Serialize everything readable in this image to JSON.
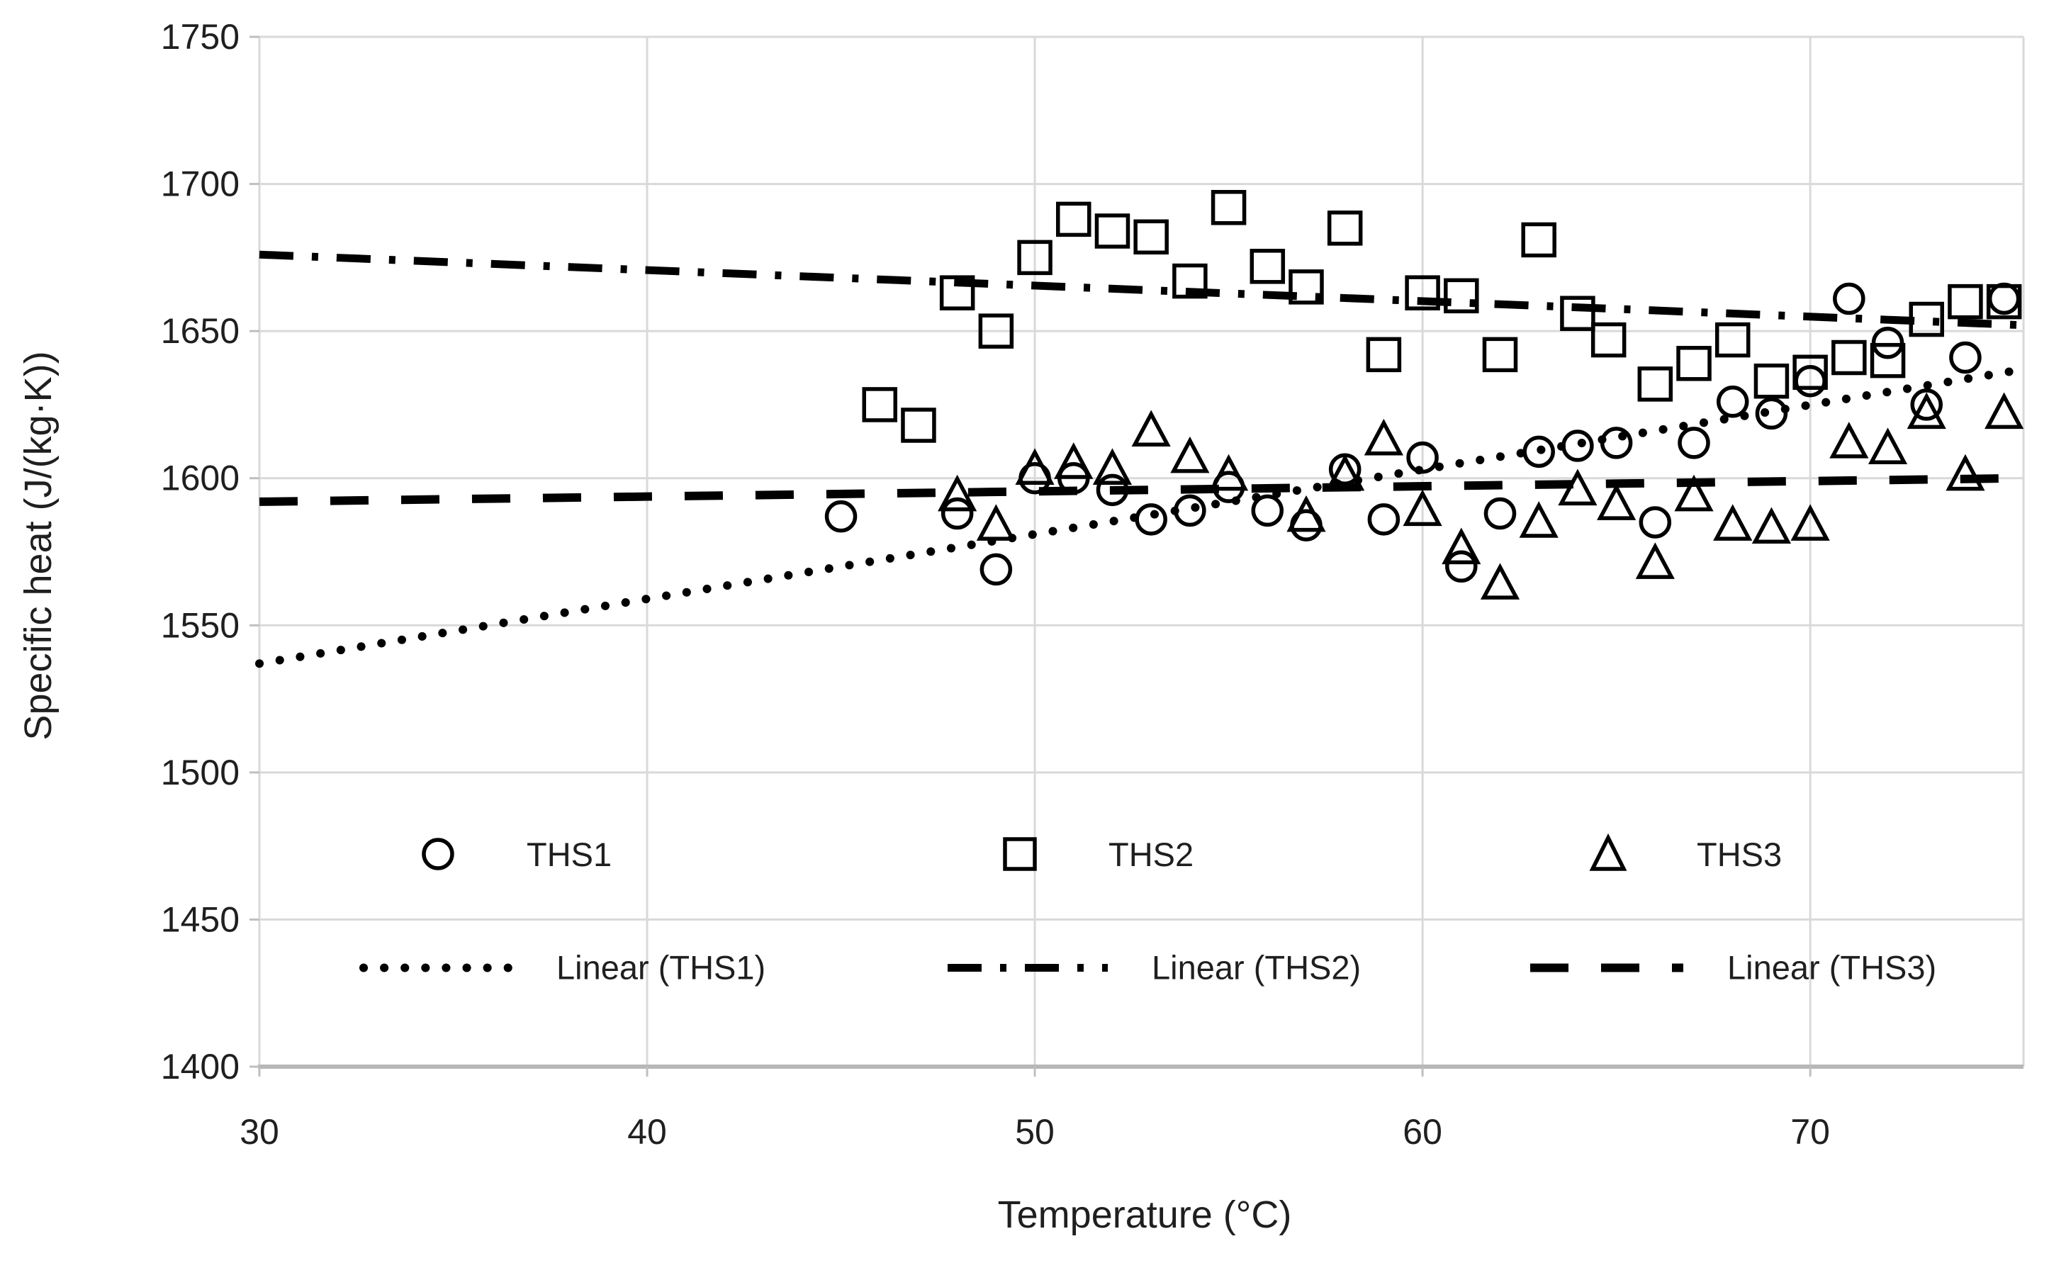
{
  "chart_data": {
    "type": "scatter",
    "title": "",
    "xlabel": "Temperature (°C)",
    "ylabel": "Specific heat (J/(kg·K))",
    "xlim": [
      30,
      75.5
    ],
    "ylim": [
      1400,
      1750
    ],
    "x_ticks": [
      30,
      40,
      50,
      60,
      70
    ],
    "y_ticks": [
      1400,
      1450,
      1500,
      1550,
      1600,
      1650,
      1700,
      1750
    ],
    "grid": true,
    "legend_position": "inside-bottom",
    "series": [
      {
        "name": "THS1",
        "marker": "circle",
        "points": [
          [
            45,
            1587
          ],
          [
            48,
            1588
          ],
          [
            49,
            1569
          ],
          [
            50,
            1600
          ],
          [
            51,
            1600
          ],
          [
            52,
            1596
          ],
          [
            53,
            1586
          ],
          [
            54,
            1589
          ],
          [
            55,
            1597
          ],
          [
            56,
            1589
          ],
          [
            57,
            1584
          ],
          [
            58,
            1603
          ],
          [
            59,
            1586
          ],
          [
            60,
            1607
          ],
          [
            61,
            1570
          ],
          [
            62,
            1588
          ],
          [
            63,
            1609
          ],
          [
            64,
            1611
          ],
          [
            65,
            1612
          ],
          [
            66,
            1585
          ],
          [
            67,
            1612
          ],
          [
            68,
            1626
          ],
          [
            69,
            1622
          ],
          [
            70,
            1633
          ],
          [
            71,
            1661
          ],
          [
            72,
            1646
          ],
          [
            73,
            1625
          ],
          [
            74,
            1641
          ],
          [
            75,
            1661
          ]
        ]
      },
      {
        "name": "THS2",
        "marker": "square",
        "points": [
          [
            46,
            1625
          ],
          [
            47,
            1618
          ],
          [
            48,
            1663
          ],
          [
            49,
            1650
          ],
          [
            50,
            1675
          ],
          [
            51,
            1688
          ],
          [
            52,
            1684
          ],
          [
            53,
            1682
          ],
          [
            54,
            1667
          ],
          [
            55,
            1692
          ],
          [
            56,
            1672
          ],
          [
            57,
            1665
          ],
          [
            58,
            1685
          ],
          [
            59,
            1642
          ],
          [
            60,
            1663
          ],
          [
            61,
            1662
          ],
          [
            62,
            1642
          ],
          [
            63,
            1681
          ],
          [
            64,
            1656
          ],
          [
            64.8,
            1647
          ],
          [
            66,
            1632
          ],
          [
            67,
            1639
          ],
          [
            68,
            1647
          ],
          [
            69,
            1633
          ],
          [
            70,
            1636
          ],
          [
            71,
            1641
          ],
          [
            72,
            1640
          ],
          [
            73,
            1654
          ],
          [
            74,
            1660
          ],
          [
            75,
            1660
          ]
        ]
      },
      {
        "name": "THS3",
        "marker": "triangle",
        "points": [
          [
            48,
            1594
          ],
          [
            49,
            1584
          ],
          [
            50,
            1603
          ],
          [
            51,
            1605
          ],
          [
            52,
            1603
          ],
          [
            53,
            1616
          ],
          [
            54,
            1607
          ],
          [
            55,
            1601
          ],
          [
            57,
            1587
          ],
          [
            58,
            1601
          ],
          [
            59,
            1613
          ],
          [
            60,
            1589
          ],
          [
            61,
            1576
          ],
          [
            62,
            1564
          ],
          [
            63,
            1585
          ],
          [
            64,
            1596
          ],
          [
            65,
            1591
          ],
          [
            66,
            1571
          ],
          [
            67,
            1594
          ],
          [
            68,
            1584
          ],
          [
            69,
            1583
          ],
          [
            70,
            1584
          ],
          [
            71,
            1612
          ],
          [
            72,
            1610
          ],
          [
            73,
            1622
          ],
          [
            74,
            1601
          ],
          [
            75,
            1622
          ]
        ]
      },
      {
        "name": "Linear (THS1)",
        "line": "dotted",
        "from": [
          30,
          1537
        ],
        "to": [
          75.5,
          1637
        ]
      },
      {
        "name": "Linear (THS2)",
        "line": "dashdot",
        "from": [
          30,
          1676
        ],
        "to": [
          75.5,
          1652
        ]
      },
      {
        "name": "Linear (THS3)",
        "line": "dashed",
        "from": [
          30,
          1592
        ],
        "to": [
          75.5,
          1600
        ]
      }
    ]
  },
  "colors": {
    "marker": "#000000",
    "trend": "#000000",
    "grid": "#d9d9d9",
    "axis_line": "#b7b7b7",
    "tick": "#bfbfbf",
    "text": "#1f1f1f",
    "background": "#ffffff"
  }
}
